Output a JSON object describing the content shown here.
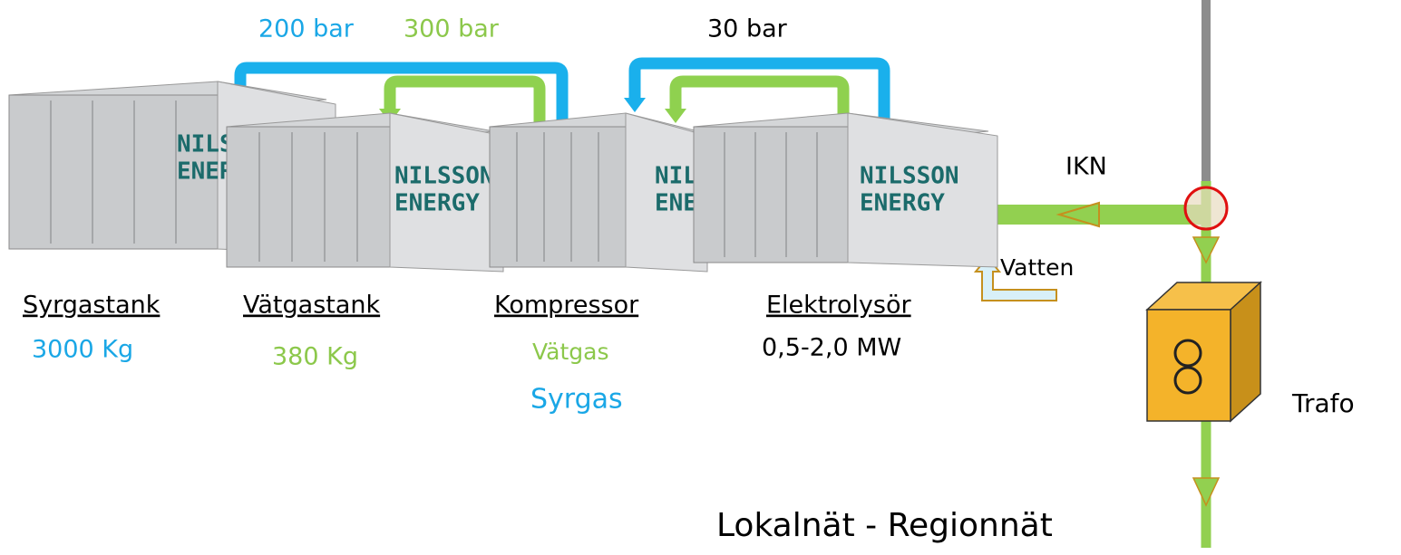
{
  "pressures": {
    "blue": "200 bar",
    "green": "300 bar",
    "electrolyser": "30 bar"
  },
  "containers": [
    {
      "logo": [
        "NILSS",
        "ENER"
      ],
      "label": "Syrgastank",
      "details": [
        "3000 Kg"
      ]
    },
    {
      "logo": [
        "NILSSON",
        "ENERGY"
      ],
      "label": "Vätgastank",
      "details": [
        "380 Kg"
      ]
    },
    {
      "logo": [
        "NILS",
        "ENE"
      ],
      "label": "Kompressor",
      "details": [
        "Vätgas",
        "Syrgas"
      ]
    },
    {
      "logo": [
        "NILSSON",
        "ENERGY"
      ],
      "label": "Elektrolysör",
      "details": [
        "0,5-2,0 MW"
      ]
    }
  ],
  "grid": {
    "line": "IKN",
    "water": "Vatten",
    "transformer": "Trafo",
    "network": "Lokalnät - Regionnät"
  }
}
